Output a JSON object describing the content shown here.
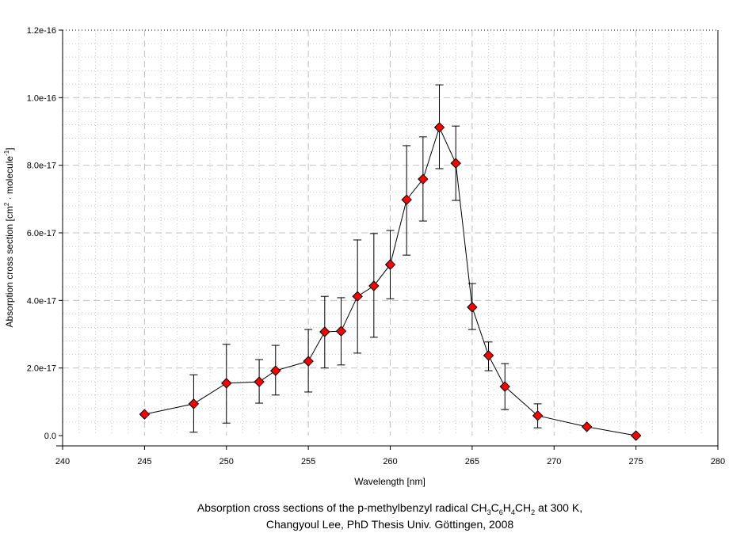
{
  "chart_data": {
    "type": "scatter",
    "xlabel": "Wavelength [nm]",
    "ylabel": {
      "main": "Absorption cross section [cm",
      "sup1": "2",
      "mid": " · molecule",
      "sup2": "-1",
      "end": "]"
    },
    "xlim": [
      240,
      280
    ],
    "ylim": [
      0,
      1.2e-16
    ],
    "xticks": [
      "240",
      "245",
      "250",
      "255",
      "260",
      "265",
      "270",
      "275",
      "280"
    ],
    "yticks": [
      "0.0",
      "2.0e-17",
      "4.0e-17",
      "6.0e-17",
      "8.0e-17",
      "1.0e-16",
      "1.2e-16"
    ],
    "grid": true,
    "series": [
      {
        "name": "p-methylbenzyl radical",
        "marker": "diamond",
        "marker_color": "#ff0000",
        "line_color": "#000000",
        "x": [
          245,
          248,
          250,
          252,
          253,
          255,
          256,
          257,
          258,
          259,
          260,
          261,
          262,
          263,
          264,
          265,
          266,
          267,
          269,
          272,
          275
        ],
        "y": [
          6.3e-18,
          9.4e-18,
          1.55e-17,
          1.59e-17,
          1.92e-17,
          2.2e-17,
          3.07e-17,
          3.09e-17,
          4.12e-17,
          4.43e-17,
          5.06e-17,
          6.98e-17,
          7.59e-17,
          9.12e-17,
          8.06e-17,
          3.8e-17,
          2.37e-17,
          1.45e-17,
          5.9e-18,
          2.6e-18,
          0
        ],
        "err_low": [
          null,
          1e-18,
          3.7e-18,
          9.6e-18,
          1.2e-17,
          1.29e-17,
          2e-17,
          2.09e-17,
          2.44e-17,
          2.91e-17,
          4.05e-17,
          5.34e-17,
          6.35e-17,
          7.9e-17,
          6.96e-17,
          3.14e-17,
          1.92e-17,
          7.7e-18,
          2.3e-18,
          null,
          null
        ],
        "err_high": [
          null,
          1.8e-17,
          2.7e-17,
          2.25e-17,
          2.67e-17,
          3.14e-17,
          4.12e-17,
          4.08e-17,
          5.79e-17,
          5.98e-17,
          6.07e-17,
          8.58e-17,
          8.84e-17,
          1.038e-16,
          9.16e-17,
          4.5e-17,
          2.77e-17,
          2.13e-17,
          9.4e-18,
          null,
          null
        ]
      }
    ],
    "caption": {
      "line1_parts": [
        "Absorption cross sections of the p-methylbenzyl radical CH",
        "3",
        "C",
        "6",
        "H",
        "4",
        "CH",
        "2",
        " at 300 K,"
      ],
      "line2": "Changyoul Lee, PhD Thesis Univ. Göttingen, 2008"
    }
  }
}
